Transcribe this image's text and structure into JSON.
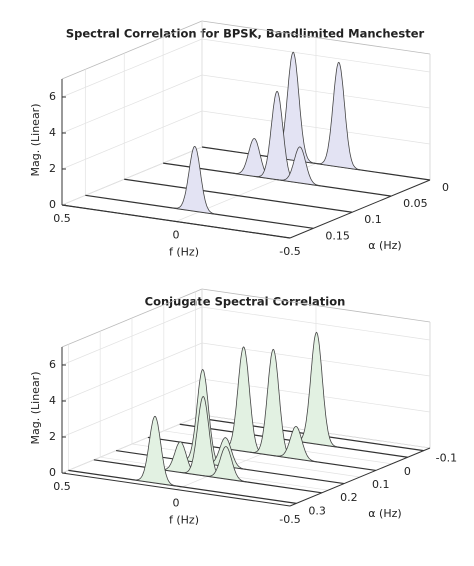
{
  "chart_data": [
    {
      "type": "waterfall3d",
      "title": "Spectral Correlation for BPSK, Bandlimited Manchester",
      "xlabel": "f (Hz)",
      "ylabel": "α (Hz)",
      "zlabel": "Mag. (Linear)",
      "xlim": [
        0.5,
        -0.5
      ],
      "xticks": [
        0.5,
        0,
        -0.5
      ],
      "ylim": [
        0,
        0.18
      ],
      "yticks": [
        0,
        0.05,
        0.1,
        0.15
      ],
      "zlim": [
        0,
        7
      ],
      "zticks": [
        0,
        2,
        4,
        6
      ],
      "color": "#e3e3f3",
      "grid": true,
      "slices": [
        {
          "alpha": 0,
          "peaks": [
            {
              "f": 0.1,
              "value": 6.0
            },
            {
              "f": -0.1,
              "value": 5.8
            }
          ]
        },
        {
          "alpha": 0.05,
          "peaks": [
            {
              "f": 0.1,
              "value": 2.1
            },
            {
              "f": 0,
              "value": 4.9
            },
            {
              "f": -0.1,
              "value": 2.0
            }
          ]
        },
        {
          "alpha": 0.1,
          "peaks": []
        },
        {
          "alpha": 0.15,
          "peaks": [
            {
              "f": 0.02,
              "value": 3.6
            }
          ]
        },
        {
          "alpha": 0.18,
          "peaks": []
        }
      ]
    },
    {
      "type": "waterfall3d",
      "title": "Conjugate Spectral Correlation",
      "xlabel": "f (Hz)",
      "ylabel": "α (Hz)",
      "zlabel": "Mag. (Linear)",
      "xlim": [
        0.5,
        -0.5
      ],
      "xticks": [
        0.5,
        0,
        -0.5
      ],
      "ylim": [
        -0.12,
        0.32
      ],
      "yticks": [
        -0.1,
        0,
        0.1,
        0.2,
        0.3
      ],
      "zlim": [
        0,
        7
      ],
      "zticks": [
        0,
        2,
        4,
        6
      ],
      "color": "#e2f1e2",
      "grid": true,
      "slices": [
        {
          "alpha": -0.1,
          "peaks": []
        },
        {
          "alpha": -0.05,
          "peaks": [
            {
              "f": -0.1,
              "value": 6.2
            }
          ]
        },
        {
          "alpha": 0.05,
          "peaks": [
            {
              "f": 0.08,
              "value": 5.8
            },
            {
              "f": -0.05,
              "value": 5.9
            },
            {
              "f": -0.15,
              "value": 1.8
            }
          ]
        },
        {
          "alpha": 0.15,
          "peaks": [
            {
              "f": 0.12,
              "value": 5.2
            },
            {
              "f": 0.02,
              "value": 1.6
            }
          ]
        },
        {
          "alpha": 0.22,
          "peaks": [
            {
              "f": 0.12,
              "value": 1.7
            },
            {
              "f": 0.02,
              "value": 4.4
            },
            {
              "f": -0.08,
              "value": 1.8
            }
          ]
        },
        {
          "alpha": 0.3,
          "peaks": [
            {
              "f": 0.12,
              "value": 3.7
            }
          ]
        }
      ]
    }
  ]
}
